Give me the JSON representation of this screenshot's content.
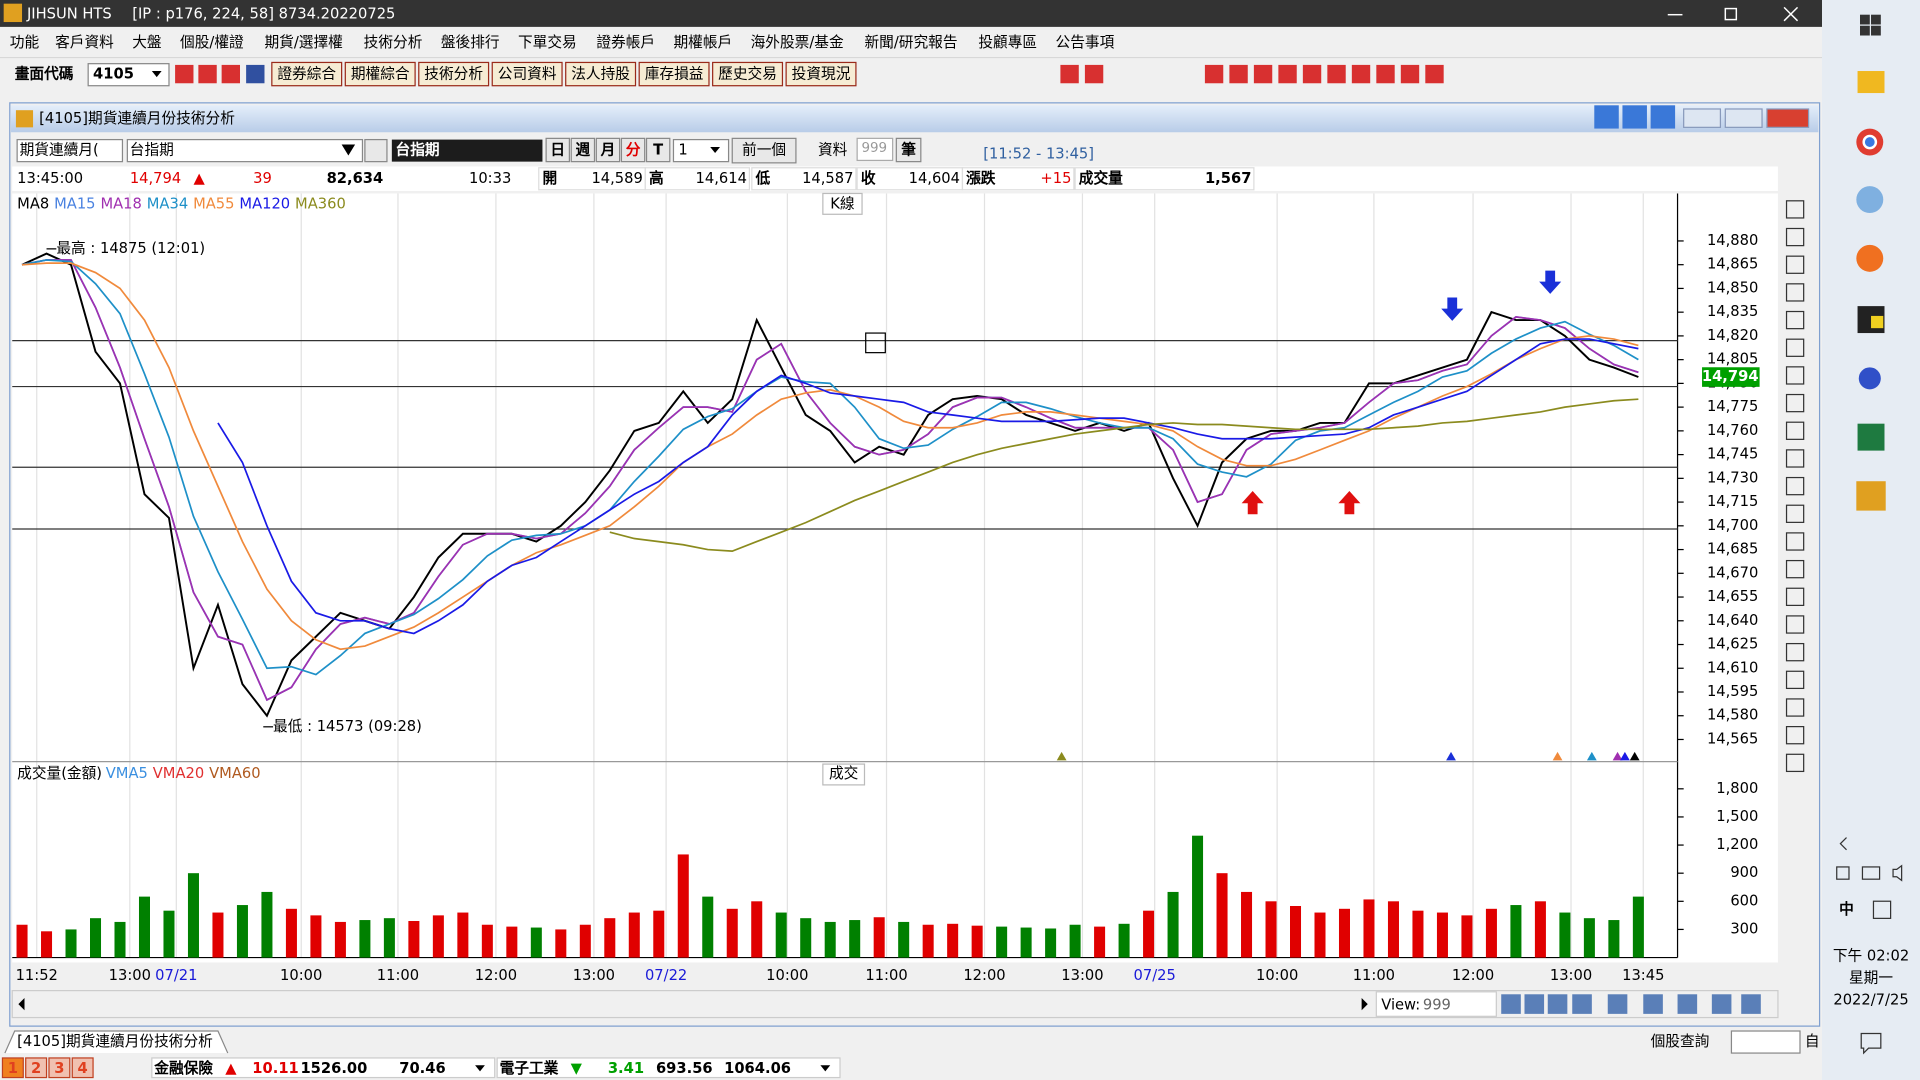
{
  "window": {
    "title": "JIHSUN HTS",
    "ip": "[IP : p176, 224, 58] 8734.20220725"
  },
  "menu": [
    "功能",
    "客戶資料",
    "大盤",
    "個股/權證",
    "期貨/選擇權",
    "技術分析",
    "盤後排行",
    "下單交易",
    "證券帳戶",
    "期權帳戶",
    "海外股票/基金",
    "新聞/研究報告",
    "投顧專區",
    "公告事項"
  ],
  "toolbar": {
    "code_label": "畫面代碼",
    "code": "4105",
    "buttons": [
      "證券綜合",
      "期權綜合",
      "技術分析",
      "公司資料",
      "法人持股",
      "庫存損益",
      "歷史交易",
      "投資現況"
    ]
  },
  "panel": {
    "title": "[4105]期貨連續月份技術分析",
    "product_type": "期貨連續月(",
    "product": "台指期",
    "symbol": "台指期",
    "periods": [
      "日",
      "週",
      "月",
      "分",
      "T"
    ],
    "interval": "1",
    "prev": "前一個",
    "data_label": "資料",
    "count": "999",
    "count_unit": "筆",
    "range": "[11:52 - 13:45]"
  },
  "info": {
    "time": "13:45:00",
    "price": "14,794",
    "arrow": "▲",
    "change": "39",
    "total": "82,634",
    "bar_time": "10:33",
    "fields": [
      {
        "label": "開",
        "value": "14,589"
      },
      {
        "label": "高",
        "value": "14,614"
      },
      {
        "label": "低",
        "value": "14,587"
      },
      {
        "label": "收",
        "value": "14,604"
      },
      {
        "label": "漲跌",
        "value": "+15"
      },
      {
        "label": "成交量",
        "value": "1,567"
      }
    ]
  },
  "chart_data": [
    {
      "type": "line",
      "panel_label": "K線",
      "xlim": [
        0,
        66
      ],
      "xticks": [
        {
          "value": 0.6,
          "label": "11:52"
        },
        {
          "value": 4.4,
          "label": "13:00"
        },
        {
          "value": 6.3,
          "label": "07/21"
        },
        {
          "value": 11.4,
          "label": "10:00"
        },
        {
          "value": 15.35,
          "label": "11:00"
        },
        {
          "value": 19.35,
          "label": "12:00"
        },
        {
          "value": 23.35,
          "label": "13:00"
        },
        {
          "value": 26.3,
          "label": "07/22"
        },
        {
          "value": 31.25,
          "label": "10:00"
        },
        {
          "value": 35.3,
          "label": "11:00"
        },
        {
          "value": 39.3,
          "label": "12:00"
        },
        {
          "value": 43.3,
          "label": "13:00"
        },
        {
          "value": 46.25,
          "label": "07/25"
        },
        {
          "value": 51.25,
          "label": "10:00"
        },
        {
          "value": 55.2,
          "label": "11:00"
        },
        {
          "value": 59.25,
          "label": "12:00"
        },
        {
          "value": 63.25,
          "label": "13:00"
        },
        {
          "value": 66.2,
          "label": "13:45"
        }
      ],
      "ylim": [
        14551,
        14910
      ],
      "yticks": [
        {
          "value": 14565,
          "label": "14,565"
        },
        {
          "value": 14580,
          "label": "14,580"
        },
        {
          "value": 14595,
          "label": "14,595"
        },
        {
          "value": 14610,
          "label": "14,610"
        },
        {
          "value": 14625,
          "label": "14,625"
        },
        {
          "value": 14640,
          "label": "14,640"
        },
        {
          "value": 14655,
          "label": "14,655"
        },
        {
          "value": 14670,
          "label": "14,670"
        },
        {
          "value": 14685,
          "label": "14,685"
        },
        {
          "value": 14700,
          "label": "14,700"
        },
        {
          "value": 14715,
          "label": "14,715"
        },
        {
          "value": 14730,
          "label": "14,730"
        },
        {
          "value": 14745,
          "label": "14,745"
        },
        {
          "value": 14760,
          "label": "14,760"
        },
        {
          "value": 14775,
          "label": "14,775"
        },
        {
          "value": 14790,
          "label": "14,790"
        },
        {
          "value": 14805,
          "label": "14,805"
        },
        {
          "value": 14820,
          "label": "14,820"
        },
        {
          "value": 14835,
          "label": "14,835"
        },
        {
          "value": 14850,
          "label": "14,850"
        },
        {
          "value": 14865,
          "label": "14,865"
        },
        {
          "value": 14880,
          "label": "14,880"
        }
      ],
      "grid": "x",
      "levels": [
        14817,
        14788,
        14737,
        14698
      ],
      "last": {
        "value": 14794,
        "label": "14,794",
        "color": "#00a000"
      },
      "high": {
        "label": "最高 : 14875 (12:01)",
        "x": 1,
        "value": 14875
      },
      "low": {
        "label": "最低 : 14573 (09:28)",
        "x": 9.85,
        "value": 14573
      },
      "series": [
        {
          "name": "MA8",
          "color": "#000000",
          "values": [
            14865,
            14872,
            14865,
            14810,
            14790,
            14720,
            14705,
            14610,
            14650,
            14600,
            14580,
            14615,
            14630,
            14645,
            14640,
            14635,
            14655,
            14680,
            14695,
            14695,
            14695,
            14690,
            14700,
            14715,
            14735,
            14760,
            14765,
            14785,
            14765,
            14780,
            14830,
            14800,
            14770,
            14760,
            14740,
            14750,
            14745,
            14770,
            14780,
            14782,
            14780,
            14770,
            14765,
            14760,
            14765,
            14760,
            14765,
            14730,
            14700,
            14740,
            14755,
            14760,
            14760,
            14765,
            14765,
            14790,
            14790,
            14795,
            14800,
            14805,
            14835,
            14830,
            14830,
            14820,
            14805,
            14800,
            14794
          ]
        },
        {
          "name": "MA15",
          "color": "#4a82e0",
          "values": [
            14865,
            14868,
            14868,
            14838,
            14800,
            14755,
            14712,
            14658,
            14630,
            14625,
            14590,
            14598,
            14622,
            14638,
            14642,
            14638,
            14645,
            14668,
            14688,
            14695,
            14695,
            14692,
            14695,
            14708,
            14725,
            14748,
            14762,
            14775,
            14775,
            14772,
            14805,
            14815,
            14785,
            14765,
            14750,
            14745,
            14748,
            14758,
            14775,
            14781,
            14781,
            14775,
            14768,
            14762,
            14762,
            14762,
            14762,
            14748,
            14715,
            14720,
            14748,
            14758,
            14760,
            14762,
            14765,
            14778,
            14790,
            14792,
            14798,
            14802,
            14820,
            14832,
            14830,
            14825,
            14812,
            14802,
            14797
          ]
        },
        {
          "name": "MA18",
          "color": "#a030b0",
          "values": [
            14865,
            14868,
            14868,
            14838,
            14800,
            14755,
            14712,
            14658,
            14630,
            14625,
            14590,
            14598,
            14622,
            14638,
            14642,
            14638,
            14645,
            14668,
            14688,
            14695,
            14695,
            14692,
            14695,
            14708,
            14725,
            14748,
            14762,
            14775,
            14775,
            14772,
            14805,
            14815,
            14785,
            14765,
            14750,
            14745,
            14748,
            14758,
            14775,
            14781,
            14781,
            14775,
            14768,
            14762,
            14762,
            14762,
            14762,
            14748,
            14715,
            14720,
            14748,
            14758,
            14760,
            14762,
            14765,
            14778,
            14790,
            14792,
            14798,
            14802,
            14820,
            14832,
            14830,
            14825,
            14812,
            14802,
            14797
          ]
        },
        {
          "name": "MA34",
          "color": "#1e90c8",
          "values": [
            14865,
            14868,
            14867,
            14853,
            14834,
            14796,
            14756,
            14706,
            14671,
            14641,
            14610,
            14611,
            14606,
            14618,
            14632,
            14638,
            14644,
            14654,
            14666,
            14681,
            14691,
            14694,
            14695,
            14700,
            14710,
            14728,
            14744,
            14761,
            14769,
            14774,
            14785,
            14794,
            14791,
            14790,
            14775,
            14755,
            14749,
            14751,
            14761,
            14769,
            14778,
            14778,
            14774,
            14769,
            14765,
            14762,
            14762,
            14755,
            14739,
            14734,
            14731,
            14739,
            14754,
            14760,
            14762,
            14770,
            14778,
            14785,
            14794,
            14798,
            14809,
            14818,
            14825,
            14829,
            14821,
            14814,
            14805
          ]
        },
        {
          "name": "MA55",
          "color": "#f08a3c",
          "values": [
            14865,
            14866,
            14866,
            14860,
            14850,
            14830,
            14800,
            14760,
            14725,
            14690,
            14660,
            14640,
            14628,
            14622,
            14624,
            14630,
            14636,
            14645,
            14655,
            14665,
            14675,
            14683,
            14688,
            14694,
            14700,
            14712,
            14725,
            14740,
            14750,
            14758,
            14770,
            14780,
            14784,
            14786,
            14782,
            14775,
            14766,
            14762,
            14762,
            14765,
            14770,
            14772,
            14772,
            14770,
            14768,
            14766,
            14764,
            14760,
            14750,
            14742,
            14738,
            14738,
            14742,
            14748,
            14754,
            14760,
            14768,
            14775,
            14782,
            14788,
            14796,
            14805,
            14812,
            14818,
            14820,
            14818,
            14814
          ]
        },
        {
          "name": "MA120",
          "color": "#1a1ae6",
          "values": [
            null,
            null,
            null,
            null,
            null,
            null,
            null,
            null,
            14765,
            14740,
            14700,
            14665,
            14645,
            14640,
            14640,
            14635,
            14632,
            14640,
            14650,
            14665,
            14675,
            14680,
            14690,
            14700,
            14710,
            14720,
            14728,
            14740,
            14750,
            14770,
            14785,
            14795,
            14790,
            14784,
            14782,
            14780,
            14778,
            14772,
            14770,
            14768,
            14766,
            14766,
            14766,
            14767,
            14768,
            14768,
            14765,
            14762,
            14758,
            14755,
            14755,
            14755,
            14756,
            14757,
            14758,
            14762,
            14770,
            14775,
            14780,
            14785,
            14795,
            14805,
            14815,
            14818,
            14818,
            14815,
            14812
          ]
        },
        {
          "name": "MA360",
          "color": "#8b8b1e",
          "values": [
            null,
            null,
            null,
            null,
            null,
            null,
            null,
            null,
            null,
            null,
            null,
            null,
            null,
            null,
            null,
            null,
            null,
            null,
            null,
            null,
            null,
            null,
            null,
            null,
            14696,
            14692,
            14690,
            14688,
            14685,
            14684,
            14690,
            14696,
            14702,
            14709,
            14716,
            14722,
            14728,
            14734,
            14740,
            14745,
            14749,
            14752,
            14755,
            14758,
            14760,
            14762,
            14764,
            14765,
            14764,
            14764,
            14763,
            14762,
            14761,
            14761,
            14761,
            14761,
            14762,
            14763,
            14765,
            14766,
            14768,
            14770,
            14772,
            14775,
            14777,
            14779,
            14780
          ]
        }
      ]
    },
    {
      "type": "bar",
      "title": "成交量(金額)",
      "panel_label": "成交",
      "indicators": [
        {
          "name": "VMA5",
          "color": "#3a8fe0"
        },
        {
          "name": "VMA20",
          "color": "#e03030"
        },
        {
          "name": "VMA60",
          "color": "#b05a20"
        }
      ],
      "xlim": [
        0,
        66
      ],
      "ylim": [
        0,
        2090
      ],
      "yticks": [
        300,
        600,
        900,
        {
          "value": 1200,
          "label": "1,200"
        },
        {
          "value": 1500,
          "label": "1,500"
        },
        {
          "value": 1800,
          "label": "1,800"
        }
      ],
      "up_color": "#e00000",
      "down_color": "#008000",
      "values": [
        350,
        280,
        300,
        420,
        380,
        650,
        500,
        900,
        480,
        560,
        700,
        520,
        450,
        380,
        400,
        420,
        390,
        450,
        480,
        350,
        330,
        320,
        300,
        350,
        420,
        480,
        500,
        1100,
        650,
        520,
        600,
        480,
        420,
        380,
        400,
        430,
        380,
        350,
        360,
        340,
        330,
        320,
        310,
        350,
        330,
        360,
        500,
        700,
        1300,
        900,
        700,
        600,
        550,
        480,
        520,
        620,
        600,
        500,
        480,
        450,
        520,
        560,
        600,
        480,
        420,
        400,
        650
      ]
    }
  ],
  "footer": {
    "view_label": "View:",
    "view_value": "999",
    "tab": "[4105]期貨連續月份技術分析",
    "query": "個股查詢",
    "from": "自",
    "pages": [
      "1",
      "2",
      "3",
      "4"
    ],
    "quotes": [
      {
        "name": "金融保險",
        "arrow": "▲",
        "change": "10.11",
        "index": "1526.00",
        "amount": "70.46"
      },
      {
        "name": "電子工業",
        "arrow": "▼",
        "change": "3.41",
        "index": "693.56",
        "amount": "1064.06"
      }
    ]
  },
  "taskbar": {
    "time": "下午 02:02",
    "weekday": "星期一",
    "date": "2022/7/25",
    "ime": "中"
  }
}
